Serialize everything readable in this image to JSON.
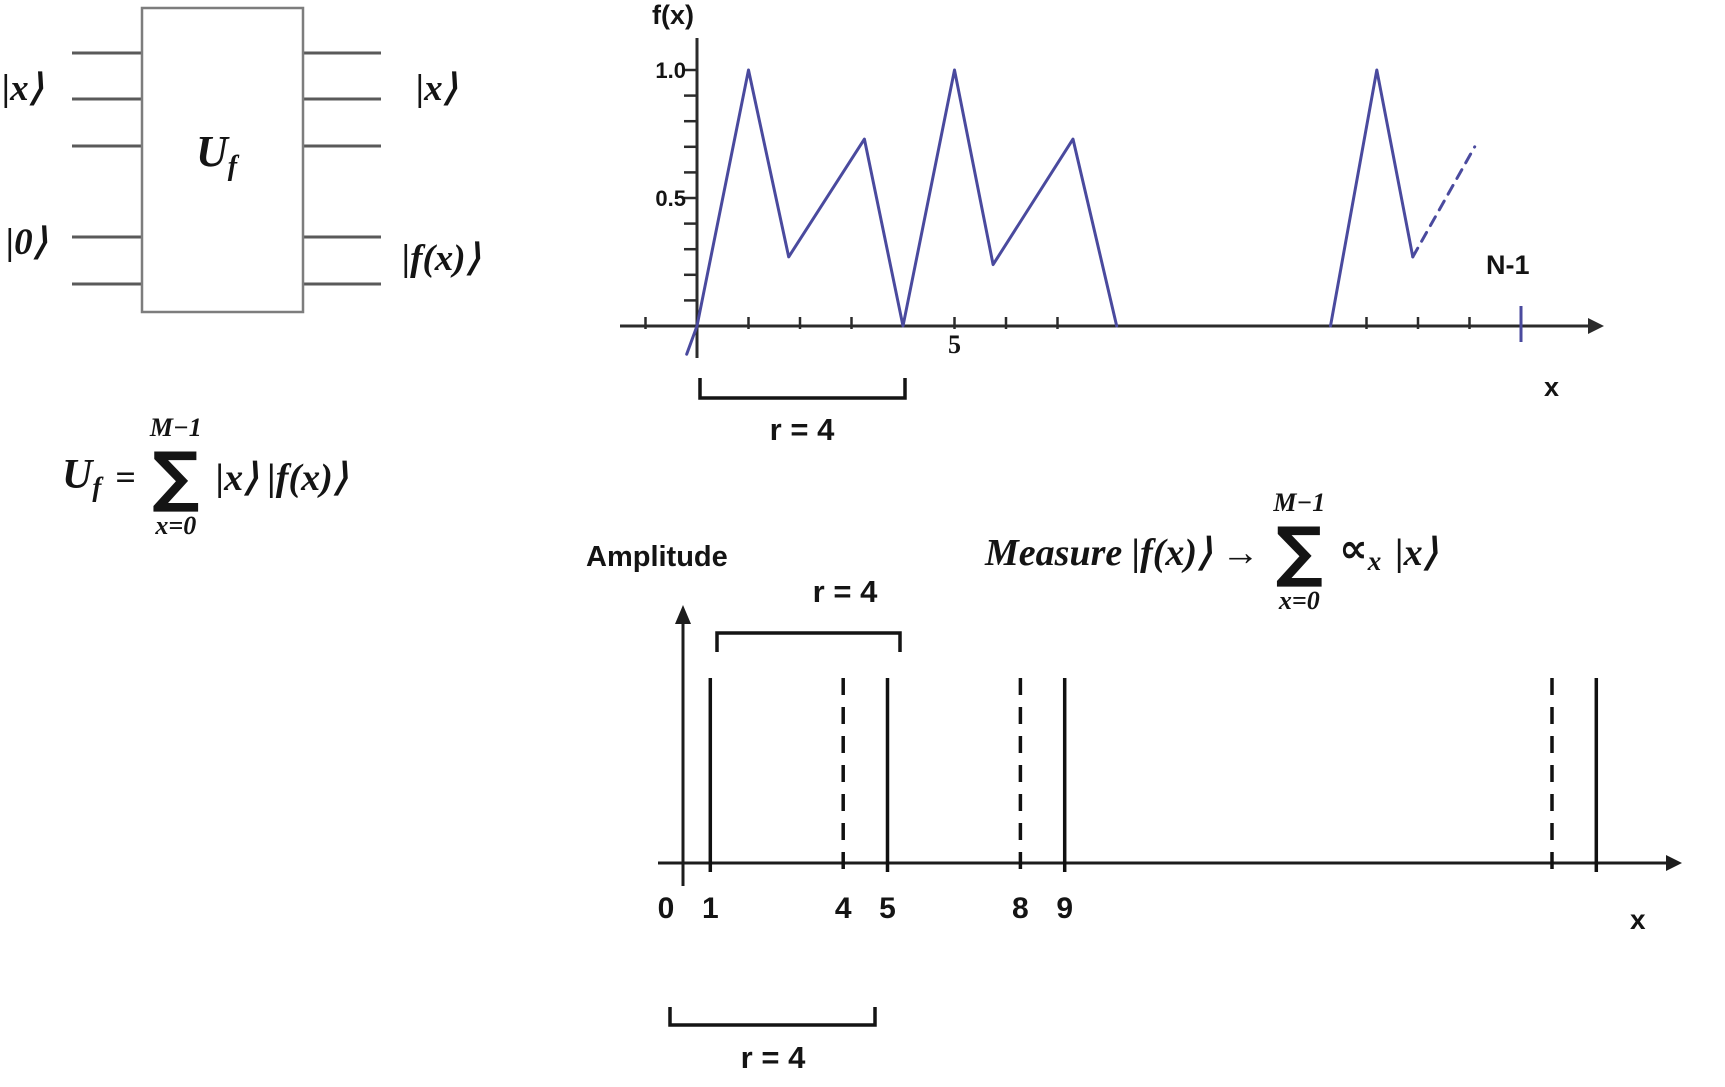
{
  "circuit": {
    "gate_label": {
      "base": "U",
      "sub": "f"
    },
    "input_top": "|x⟩",
    "input_bottom": "|0⟩",
    "output_top": "|x⟩",
    "output_bottom": "|f(x)⟩"
  },
  "formulas": {
    "uf": {
      "lhs_base": "U",
      "lhs_sub": "f",
      "equals": "=",
      "sum_upper": "M−1",
      "sum_symbol": "∑",
      "sum_lower": "x=0",
      "rhs": "|x⟩ |f(x)⟩"
    },
    "measure": {
      "prefix": "Measure |f(x)⟩ →",
      "sum_upper": "M−1",
      "sum_symbol": "∑",
      "sum_lower": "x=0",
      "alpha": "∝",
      "alpha_sub": "x",
      "ket": "|x⟩"
    }
  },
  "chart_data": [
    {
      "name": "f_of_x_plot",
      "type": "line",
      "title": "",
      "ylabel": "f(x)",
      "xlabel": "x",
      "right_edge_label": "N-1",
      "line_color": "#4a4a9e",
      "xlim": [
        -1.5,
        17
      ],
      "ylim": [
        -0.15,
        1.15
      ],
      "yticks": [
        0.1,
        0.2,
        0.3,
        0.4,
        0.5,
        0.6,
        0.7,
        0.8,
        0.9,
        1.0
      ],
      "ytick_labels": [
        {
          "text": "1.0",
          "value": 1.0
        },
        {
          "text": "0.5",
          "value": 0.5
        }
      ],
      "xticks": [
        {
          "x": -1
        },
        {
          "x": 1
        },
        {
          "x": 2
        },
        {
          "x": 3
        },
        {
          "x": 5,
          "label": "5"
        },
        {
          "x": 6
        },
        {
          "x": 7
        },
        {
          "x": 13
        },
        {
          "x": 14
        },
        {
          "x": 15
        },
        {
          "x": 16,
          "style": "blue-tall"
        }
      ],
      "segments": [
        {
          "dashed": false,
          "points": [
            [
              -0.2,
              -0.11
            ],
            [
              0,
              0
            ],
            [
              1,
              1.0
            ],
            [
              1.78,
              0.27
            ],
            [
              3.25,
              0.73
            ],
            [
              4,
              0
            ],
            [
              5,
              1.0
            ],
            [
              5.75,
              0.24
            ],
            [
              7.3,
              0.73
            ],
            [
              8.15,
              0
            ]
          ]
        },
        {
          "dashed": false,
          "points": [
            [
              12.3,
              0
            ],
            [
              13.2,
              1.0
            ],
            [
              13.9,
              0.27
            ]
          ]
        },
        {
          "dashed": true,
          "points": [
            [
              13.9,
              0.27
            ],
            [
              15.1,
              0.7
            ]
          ]
        }
      ],
      "period_annotation": {
        "label": "r = 4",
        "from": 0,
        "to": 4
      }
    },
    {
      "name": "amplitude_plot",
      "type": "stem",
      "ylabel": "Amplitude",
      "xlabel": "x",
      "lines": [
        {
          "x": 1,
          "style": "solid"
        },
        {
          "x": 4,
          "style": "dashed"
        },
        {
          "x": 5,
          "style": "solid"
        },
        {
          "x": 8,
          "style": "dashed"
        },
        {
          "x": 9,
          "style": "solid"
        },
        {
          "x": 20,
          "style": "dashed"
        },
        {
          "x": 21,
          "style": "solid"
        }
      ],
      "x_tick_labels": [
        {
          "x": 0,
          "label": "0"
        },
        {
          "x": 1,
          "label": "1"
        },
        {
          "x": 4,
          "label": "4"
        },
        {
          "x": 5,
          "label": "5"
        },
        {
          "x": 8,
          "label": "8"
        },
        {
          "x": 9,
          "label": "9"
        }
      ],
      "period_annotations": [
        {
          "label": "r = 4",
          "from": 1,
          "to": 5,
          "position": "top"
        },
        {
          "label": "r = 4",
          "from": 0,
          "to": 4,
          "position": "bottom"
        }
      ]
    }
  ]
}
